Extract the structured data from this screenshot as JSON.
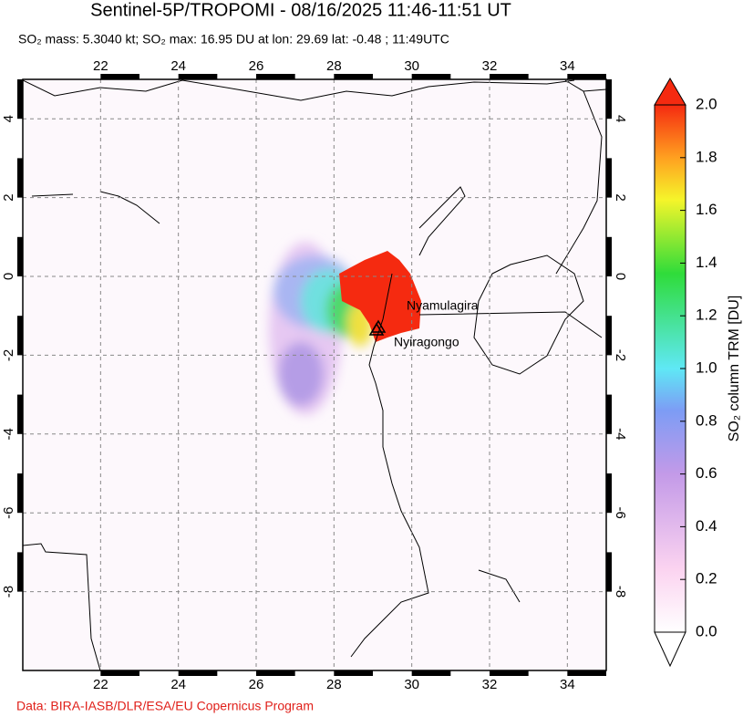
{
  "header": {
    "title": "Sentinel-5P/TROPOMI - 08/16/2025 11:46-11:51 UT",
    "subtitle": "SO₂ mass: 5.3040 kt; SO₂ max: 16.95 DU at lon: 29.69 lat: -0.48 ; 11:49UTC"
  },
  "map": {
    "xlim": [
      20,
      35
    ],
    "ylim": [
      -10,
      5
    ],
    "xticks": [
      22,
      24,
      26,
      28,
      30,
      32,
      34
    ],
    "yticks": [
      4,
      2,
      0,
      -2,
      -4,
      -6,
      -8
    ],
    "annotations": [
      "Nyamulagira",
      "Nyiragongo"
    ]
  },
  "colorbar": {
    "label": "SO₂ column TRM [DU]",
    "lim": [
      0,
      2
    ],
    "ticks": [
      {
        "value": 0,
        "label": "0.0"
      },
      0.2,
      0.4,
      0.6,
      0.8,
      {
        "value": 1,
        "label": "1.0"
      },
      1.2,
      1.4,
      1.6,
      1.8,
      {
        "value": 2,
        "label": "2.0"
      }
    ]
  },
  "footer": {
    "credit": "Data: BIRA-IASB/DLR/ESA/EU Copernicus Program"
  }
}
